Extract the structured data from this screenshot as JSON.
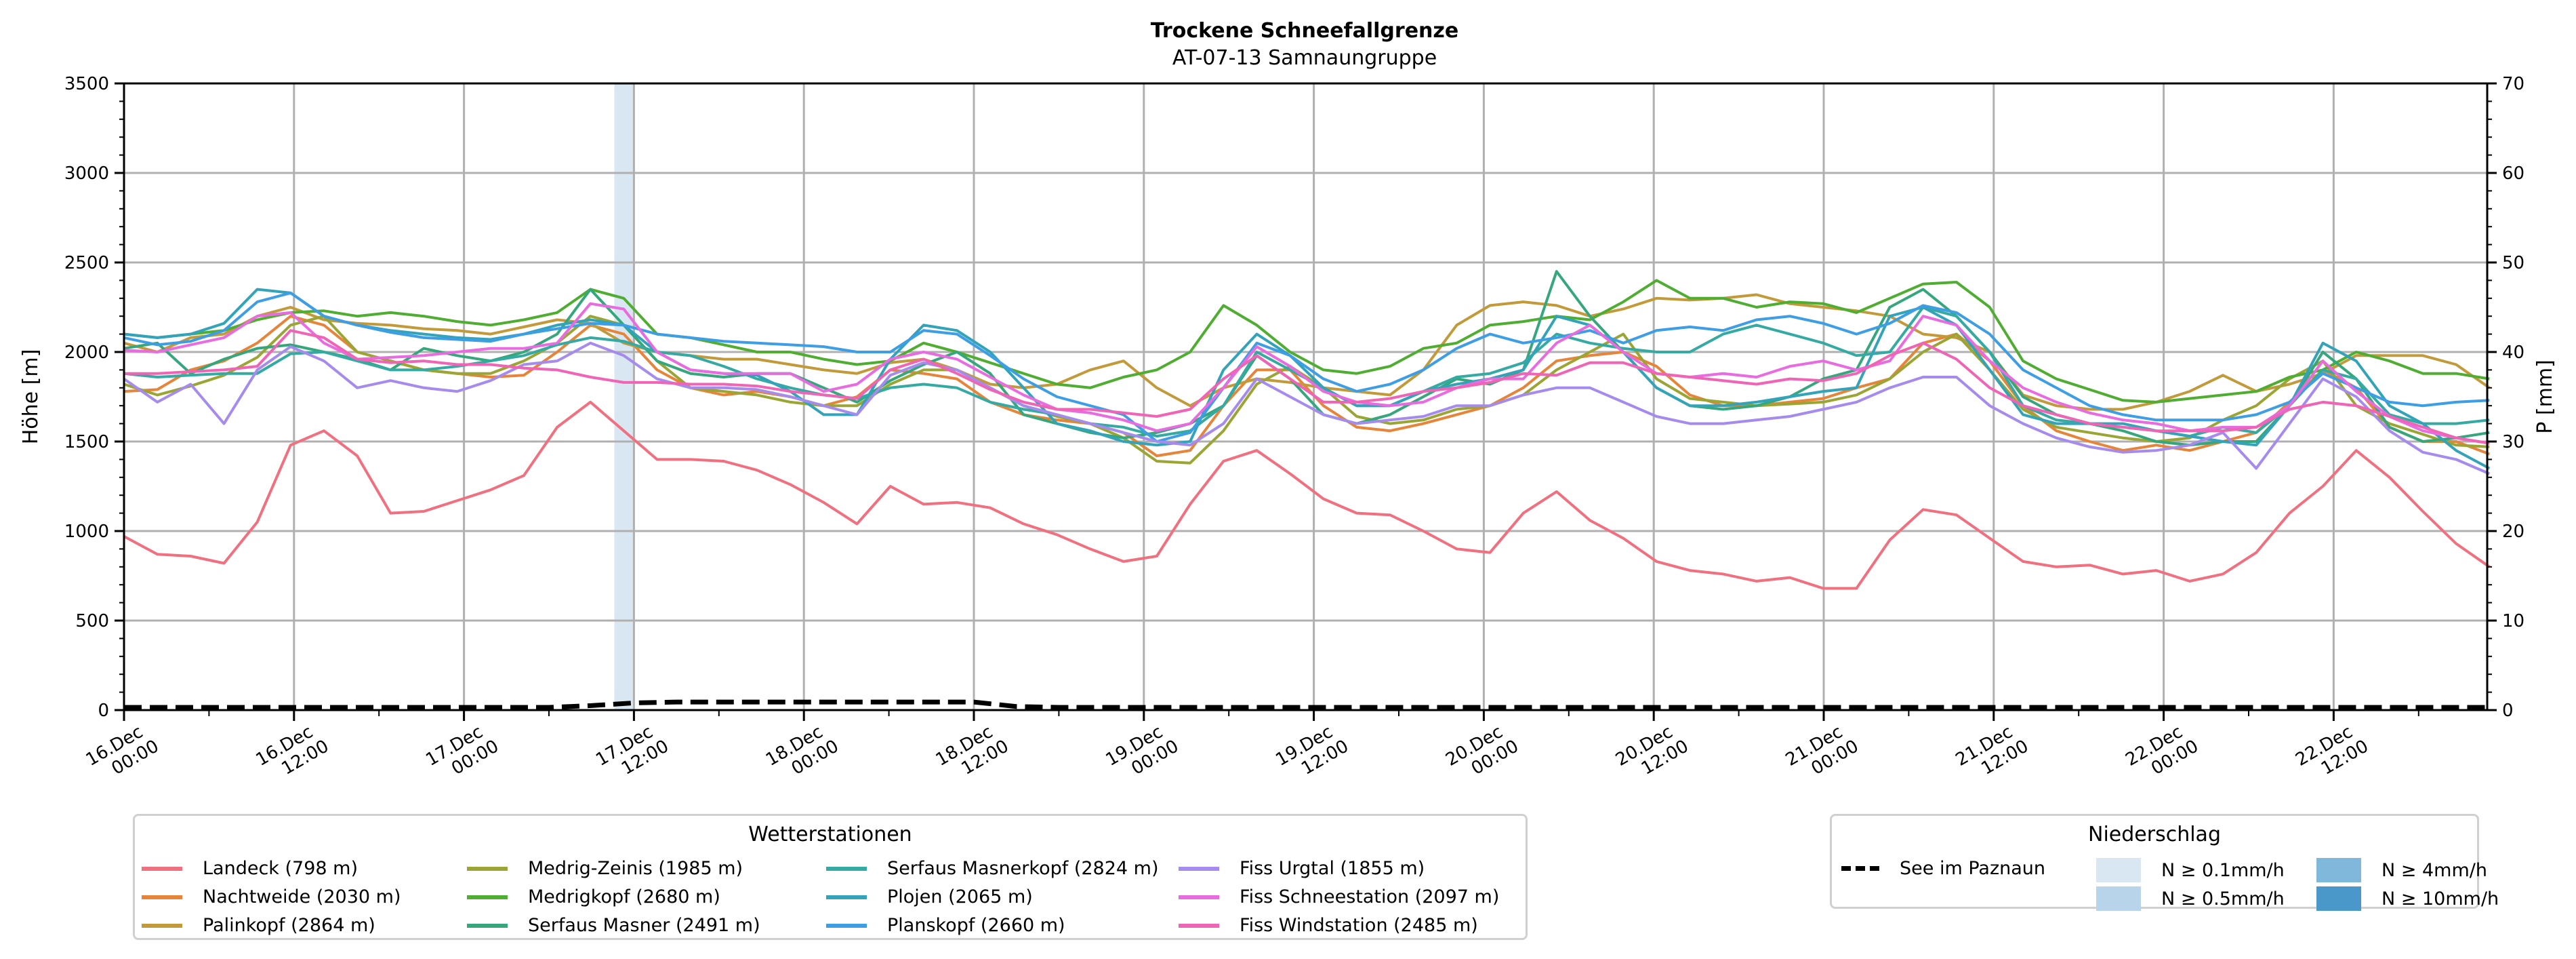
{
  "chart_data": {
    "type": "line",
    "title": "Trockene Schneefallgrenze",
    "subtitle": "AT-07-13 Samnaungruppe",
    "ylabel": "Höhe [m]",
    "y2label": "P [mm]",
    "ylim": [
      0,
      3500
    ],
    "y2lim": [
      0,
      70
    ],
    "yticks": [
      "0",
      "500",
      "1000",
      "1500",
      "2000",
      "2500",
      "3000",
      "3500"
    ],
    "y2ticks": [
      "0",
      "10",
      "20",
      "30",
      "40",
      "50",
      "60",
      "70"
    ],
    "grid": true,
    "x_unit": "hours since 16.Dec 00:00",
    "x_range_hours": [
      0,
      167
    ],
    "xticks": [
      {
        "h": 0,
        "line1": "16.Dec",
        "line2": "00:00"
      },
      {
        "h": 12,
        "line1": "16.Dec",
        "line2": "12:00"
      },
      {
        "h": 24,
        "line1": "17.Dec",
        "line2": "00:00"
      },
      {
        "h": 36,
        "line1": "17.Dec",
        "line2": "12:00"
      },
      {
        "h": 48,
        "line1": "18.Dec",
        "line2": "00:00"
      },
      {
        "h": 60,
        "line1": "18.Dec",
        "line2": "12:00"
      },
      {
        "h": 72,
        "line1": "19.Dec",
        "line2": "00:00"
      },
      {
        "h": 84,
        "line1": "19.Dec",
        "line2": "12:00"
      },
      {
        "h": 96,
        "line1": "20.Dec",
        "line2": "00:00"
      },
      {
        "h": 108,
        "line1": "20.Dec",
        "line2": "12:00"
      },
      {
        "h": 120,
        "line1": "21.Dec",
        "line2": "00:00"
      },
      {
        "h": 132,
        "line1": "21.Dec",
        "line2": "12:00"
      },
      {
        "h": 144,
        "line1": "22.Dec",
        "line2": "00:00"
      },
      {
        "h": 156,
        "line1": "22.Dec",
        "line2": "12:00"
      }
    ],
    "sample_step_hours": 3,
    "series": [
      {
        "name": "Landeck (798 m)",
        "color": "#f0707f",
        "values": [
          970,
          870,
          860,
          820,
          1050,
          1480,
          1560,
          1420,
          1100,
          1110,
          1170,
          1230,
          1310,
          1580,
          1720,
          1560,
          1400,
          1400,
          1390,
          1340,
          1260,
          1160,
          1040,
          1250,
          1150,
          1160,
          1130,
          1040,
          980,
          900,
          830,
          860,
          1150,
          1390,
          1450,
          1320,
          1180,
          1100,
          1090,
          1000,
          900,
          880,
          1100,
          1220,
          1060,
          960,
          830,
          780,
          760,
          720,
          740,
          680,
          680,
          950,
          1120,
          1090,
          960,
          830,
          800,
          810,
          760,
          780,
          720,
          760,
          880,
          1100,
          1250,
          1450,
          1300,
          1110,
          930,
          800
        ]
      },
      {
        "name": "Nachtweide (2030 m)",
        "color": "#e6853a",
        "values": [
          1780,
          1790,
          1900,
          1950,
          2050,
          2200,
          2150,
          2000,
          1950,
          1900,
          1880,
          1860,
          1870,
          2000,
          2150,
          2100,
          1900,
          1800,
          1760,
          1780,
          1750,
          1700,
          1750,
          1900,
          1880,
          1850,
          1720,
          1650,
          1620,
          1600,
          1550,
          1420,
          1450,
          1700,
          1900,
          1900,
          1700,
          1580,
          1560,
          1600,
          1650,
          1700,
          1800,
          1950,
          1980,
          2000,
          1920,
          1760,
          1700,
          1700,
          1720,
          1740,
          1800,
          1850,
          2050,
          2100,
          1950,
          1700,
          1560,
          1500,
          1450,
          1480,
          1450,
          1500,
          1550,
          1720,
          1900,
          1800,
          1580,
          1500,
          1500,
          1430
        ]
      },
      {
        "name": "Palinkopf (2864 m)",
        "color": "#c29a3a",
        "values": [
          2050,
          2000,
          2080,
          2100,
          2200,
          2250,
          2180,
          2160,
          2150,
          2130,
          2120,
          2100,
          2140,
          2180,
          2160,
          2050,
          2000,
          1980,
          1960,
          1960,
          1930,
          1900,
          1880,
          1940,
          1960,
          1900,
          1820,
          1800,
          1820,
          1900,
          1950,
          1800,
          1700,
          1800,
          1850,
          1830,
          1800,
          1780,
          1760,
          1900,
          2150,
          2260,
          2280,
          2260,
          2200,
          2240,
          2300,
          2290,
          2300,
          2320,
          2270,
          2250,
          2230,
          2200,
          2100,
          2080,
          2000,
          1760,
          1700,
          1680,
          1680,
          1720,
          1780,
          1870,
          1780,
          1820,
          1880,
          1980,
          1980,
          1980,
          1930,
          1800
        ]
      },
      {
        "name": "Medrig-Zeinis (1985 m)",
        "color": "#9aa534",
        "values": [
          1820,
          1760,
          1810,
          1870,
          1970,
          2150,
          2200,
          2000,
          1950,
          1900,
          1880,
          1880,
          1950,
          2050,
          2200,
          2150,
          1950,
          1800,
          1780,
          1760,
          1720,
          1700,
          1700,
          1820,
          1900,
          1900,
          1800,
          1700,
          1640,
          1600,
          1520,
          1390,
          1380,
          1560,
          1820,
          1920,
          1800,
          1640,
          1600,
          1620,
          1680,
          1700,
          1760,
          1900,
          2000,
          2100,
          1850,
          1740,
          1720,
          1700,
          1710,
          1720,
          1760,
          1850,
          2000,
          2100,
          1900,
          1680,
          1580,
          1550,
          1520,
          1500,
          1520,
          1620,
          1700,
          1850,
          1950,
          1700,
          1600,
          1540,
          1480,
          1470
        ]
      },
      {
        "name": "Medrigkopf (2680 m)",
        "color": "#4fae31",
        "values": [
          2100,
          2080,
          2100,
          2120,
          2180,
          2220,
          2230,
          2200,
          2220,
          2200,
          2170,
          2150,
          2180,
          2220,
          2350,
          2300,
          2100,
          2080,
          2040,
          2000,
          2000,
          1960,
          1930,
          1950,
          2050,
          2000,
          1940,
          1880,
          1820,
          1800,
          1860,
          1900,
          2000,
          2260,
          2150,
          2000,
          1900,
          1880,
          1920,
          2020,
          2050,
          2150,
          2170,
          2200,
          2180,
          2280,
          2400,
          2300,
          2300,
          2250,
          2280,
          2270,
          2220,
          2300,
          2380,
          2390,
          2250,
          1950,
          1850,
          1790,
          1730,
          1720,
          1740,
          1760,
          1780,
          1860,
          1900,
          2000,
          1950,
          1880,
          1880,
          1850
        ]
      },
      {
        "name": "Serfaus Masner (2491 m)",
        "color": "#36a77c",
        "values": [
          2020,
          2050,
          1880,
          1960,
          2020,
          2040,
          2000,
          1960,
          1900,
          2020,
          1980,
          1950,
          2000,
          2100,
          2350,
          2150,
          1950,
          1880,
          1860,
          1880,
          1880,
          1800,
          1720,
          1840,
          1930,
          2000,
          1880,
          1650,
          1600,
          1550,
          1520,
          1550,
          1600,
          1700,
          1980,
          1850,
          1650,
          1600,
          1650,
          1750,
          1850,
          1820,
          1900,
          2450,
          2200,
          2000,
          1800,
          1700,
          1680,
          1700,
          1750,
          1850,
          1900,
          2250,
          2350,
          2200,
          2000,
          1750,
          1650,
          1600,
          1560,
          1500,
          1480,
          1500,
          1500,
          1700,
          2000,
          1850,
          1580,
          1500,
          1520,
          1550
        ]
      },
      {
        "name": "Serfaus Masnerkopf (2824 m)",
        "color": "#35aaa3",
        "values": [
          1880,
          1860,
          1870,
          1880,
          1880,
          1990,
          2000,
          1950,
          1900,
          1900,
          1920,
          1950,
          1980,
          2040,
          2080,
          2060,
          2000,
          1980,
          1920,
          1850,
          1800,
          1760,
          1740,
          1800,
          1820,
          1800,
          1720,
          1680,
          1650,
          1600,
          1580,
          1530,
          1560,
          1700,
          2000,
          1900,
          1800,
          1700,
          1700,
          1780,
          1860,
          1880,
          1940,
          2100,
          2050,
          2020,
          2000,
          2000,
          2100,
          2150,
          2100,
          2050,
          1980,
          2000,
          2250,
          2200,
          2000,
          1700,
          1620,
          1600,
          1580,
          1560,
          1530,
          1580,
          1550,
          1700,
          1900,
          1850,
          1650,
          1600,
          1600,
          1620
        ]
      },
      {
        "name": "Plojen (2065 m)",
        "color": "#33a3b9",
        "values": [
          2100,
          2080,
          2100,
          2160,
          2350,
          2330,
          2200,
          2150,
          2120,
          2100,
          2080,
          2070,
          2100,
          2150,
          2180,
          2150,
          2000,
          1900,
          1880,
          1870,
          1780,
          1650,
          1650,
          1960,
          2150,
          2120,
          2000,
          1800,
          1600,
          1560,
          1500,
          1480,
          1500,
          1900,
          2100,
          1980,
          1800,
          1700,
          1700,
          1780,
          1820,
          1850,
          1900,
          2200,
          2150,
          2000,
          1800,
          1700,
          1700,
          1720,
          1750,
          1780,
          1800,
          2200,
          2250,
          2150,
          1900,
          1650,
          1600,
          1600,
          1600,
          1560,
          1530,
          1500,
          1480,
          1700,
          2050,
          1950,
          1700,
          1600,
          1450,
          1350
        ]
      },
      {
        "name": "Planskopf (2660 m)",
        "color": "#3d9ee5",
        "values": [
          2080,
          2040,
          2060,
          2120,
          2280,
          2330,
          2200,
          2150,
          2110,
          2080,
          2070,
          2060,
          2100,
          2130,
          2160,
          2150,
          2100,
          2080,
          2060,
          2050,
          2040,
          2030,
          2000,
          2000,
          2120,
          2100,
          1980,
          1850,
          1750,
          1700,
          1650,
          1500,
          1550,
          1800,
          2050,
          1980,
          1850,
          1780,
          1820,
          1900,
          2020,
          2100,
          2050,
          2080,
          2120,
          2050,
          2120,
          2140,
          2120,
          2180,
          2200,
          2160,
          2100,
          2160,
          2260,
          2220,
          2100,
          1900,
          1800,
          1700,
          1650,
          1620,
          1620,
          1620,
          1650,
          1720,
          1880,
          1800,
          1720,
          1700,
          1720,
          1730
        ]
      },
      {
        "name": "Fiss Urgtal  (1855 m)",
        "color": "#a68bee",
        "values": [
          1850,
          1720,
          1820,
          1600,
          1900,
          2030,
          1950,
          1800,
          1840,
          1800,
          1780,
          1840,
          1930,
          1950,
          2050,
          1980,
          1850,
          1800,
          1800,
          1790,
          1750,
          1700,
          1650,
          1870,
          1940,
          1900,
          1800,
          1700,
          1650,
          1600,
          1550,
          1500,
          1480,
          1600,
          1850,
          1750,
          1650,
          1600,
          1620,
          1640,
          1700,
          1700,
          1760,
          1800,
          1800,
          1720,
          1640,
          1600,
          1600,
          1620,
          1640,
          1680,
          1720,
          1800,
          1860,
          1860,
          1700,
          1600,
          1520,
          1470,
          1440,
          1450,
          1480,
          1550,
          1350,
          1600,
          1850,
          1750,
          1560,
          1440,
          1400,
          1320
        ]
      },
      {
        "name": "Fiss Schneestation (2097 m)",
        "color": "#e86be0",
        "values": [
          2010,
          2000,
          2040,
          2080,
          2200,
          2220,
          2050,
          1960,
          1970,
          1980,
          2000,
          2020,
          2020,
          2050,
          2270,
          2240,
          2000,
          1900,
          1880,
          1880,
          1880,
          1780,
          1820,
          1960,
          2000,
          1960,
          1860,
          1760,
          1680,
          1660,
          1620,
          1560,
          1600,
          1800,
          2030,
          1920,
          1780,
          1720,
          1700,
          1720,
          1800,
          1850,
          1850,
          2050,
          2150,
          2000,
          1880,
          1860,
          1880,
          1860,
          1920,
          1950,
          1900,
          1950,
          2200,
          2150,
          1950,
          1800,
          1720,
          1660,
          1620,
          1600,
          1560,
          1580,
          1580,
          1700,
          1950,
          1780,
          1640,
          1560,
          1520,
          1490
        ]
      },
      {
        "name": "Fiss Windstation (2485 m)",
        "color": "#f064b6",
        "values": [
          1880,
          1880,
          1890,
          1900,
          1920,
          2120,
          2080,
          1960,
          1940,
          1950,
          1930,
          1930,
          1910,
          1900,
          1860,
          1830,
          1830,
          1820,
          1820,
          1810,
          1780,
          1760,
          1740,
          1900,
          1960,
          1880,
          1790,
          1720,
          1680,
          1680,
          1660,
          1640,
          1680,
          1850,
          1980,
          1850,
          1720,
          1720,
          1740,
          1780,
          1800,
          1830,
          1880,
          1870,
          1940,
          1940,
          1880,
          1860,
          1840,
          1820,
          1850,
          1840,
          1880,
          1980,
          2050,
          1960,
          1800,
          1700,
          1650,
          1600,
          1580,
          1560,
          1560,
          1560,
          1580,
          1680,
          1720,
          1700,
          1640,
          1580,
          1520,
          1490
        ]
      }
    ],
    "precip_series": {
      "name": "See im Paznaun",
      "style": "dashed",
      "unit": "mm",
      "points": [
        [
          0,
          0.3
        ],
        [
          30,
          0.3
        ],
        [
          33,
          0.5
        ],
        [
          36,
          0.8
        ],
        [
          39,
          0.9
        ],
        [
          60,
          0.9
        ],
        [
          63,
          0.4
        ],
        [
          66,
          0.3
        ],
        [
          167,
          0.3
        ]
      ]
    },
    "precip_shading": [
      {
        "start_h": 35,
        "end_h": 36,
        "class": "N ≥ 0.1mm/h",
        "color": "#d9e7f3"
      }
    ],
    "legends": {
      "stations_title": "Wetterstationen",
      "precip_title": "Niederschlag",
      "precip_items": [
        {
          "label": "See im Paznaun",
          "kind": "dash"
        },
        {
          "label": "N ≥ 0.1mm/h",
          "kind": "patch",
          "color": "#d9e7f3"
        },
        {
          "label": "N ≥ 0.5mm/h",
          "kind": "patch",
          "color": "#b7d4ea"
        },
        {
          "label": "N ≥ 4mm/h",
          "kind": "patch",
          "color": "#7fb8da"
        },
        {
          "label": "N ≥ 10mm/h",
          "kind": "patch",
          "color": "#4a98c9"
        }
      ]
    }
  }
}
